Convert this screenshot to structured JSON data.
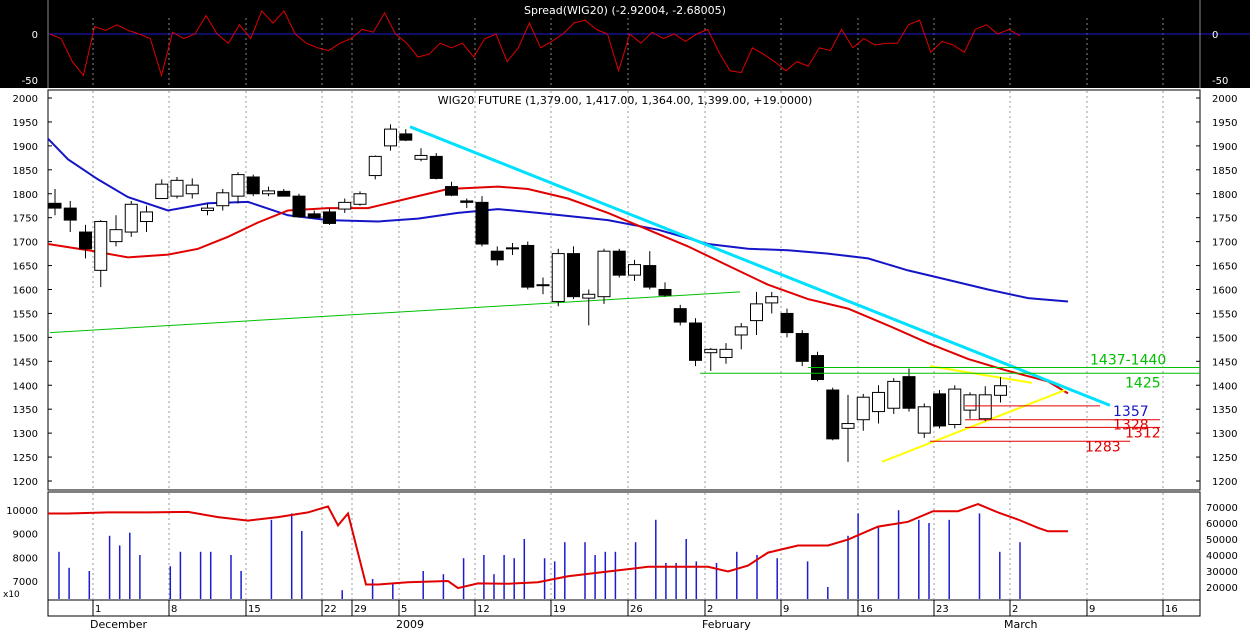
{
  "chart_data": [
    {
      "type": "line",
      "title": "Spread(WIG20) (-2.92004, -2.68005)",
      "ylim": [
        -55,
        55
      ],
      "y_ticks": [
        -50,
        0
      ],
      "y_tick_labels": [
        "-50",
        "0"
      ],
      "zero_line": true,
      "background": "#000000",
      "series": [
        {
          "color": "#e00000",
          "values": [
            0,
            -5,
            -30,
            -45,
            8,
            4,
            10,
            4,
            0,
            -5,
            -45,
            2,
            -5,
            0,
            20,
            0,
            -10,
            10,
            -5,
            25,
            12,
            25,
            0,
            -10,
            -15,
            -18,
            -10,
            -5,
            5,
            2,
            23,
            0,
            -10,
            -25,
            -22,
            -10,
            -15,
            -10,
            -25,
            -5,
            0,
            -30,
            -15,
            12,
            -15,
            -8,
            0,
            12,
            15,
            5,
            0,
            -40,
            0,
            -10,
            2,
            -5,
            0,
            -8,
            0,
            5,
            -20,
            -40,
            -42,
            -15,
            -22,
            -30,
            -40,
            -30,
            -35,
            -15,
            -18,
            5,
            -15,
            -5,
            -12,
            -10,
            -10,
            10,
            15,
            -20,
            -8,
            -12,
            -20,
            5,
            10,
            0,
            5,
            -2
          ]
        }
      ]
    },
    {
      "type": "candlestick",
      "title": "WIG20 FUTURE (1,379.00, 1,417.00, 1,364.00, 1,399.00, +19.0000)",
      "ylim": [
        1170,
        2010
      ],
      "y_ticks": [
        1200,
        1250,
        1300,
        1350,
        1400,
        1450,
        1500,
        1550,
        1600,
        1650,
        1700,
        1750,
        1800,
        1850,
        1900,
        1950,
        2000
      ],
      "candles": [
        {
          "o": 1780,
          "h": 1810,
          "l": 1755,
          "c": 1770
        },
        {
          "o": 1770,
          "h": 1785,
          "l": 1720,
          "c": 1745
        },
        {
          "o": 1720,
          "h": 1735,
          "l": 1665,
          "c": 1685
        },
        {
          "o": 1640,
          "h": 1745,
          "l": 1605,
          "c": 1742
        },
        {
          "o": 1700,
          "h": 1755,
          "l": 1690,
          "c": 1725
        },
        {
          "o": 1720,
          "h": 1785,
          "l": 1710,
          "c": 1778
        },
        {
          "o": 1742,
          "h": 1775,
          "l": 1720,
          "c": 1762
        },
        {
          "o": 1790,
          "h": 1830,
          "l": 1790,
          "c": 1820
        },
        {
          "o": 1795,
          "h": 1835,
          "l": 1790,
          "c": 1828
        },
        {
          "o": 1800,
          "h": 1832,
          "l": 1790,
          "c": 1818
        },
        {
          "o": 1765,
          "h": 1780,
          "l": 1755,
          "c": 1770
        },
        {
          "o": 1775,
          "h": 1810,
          "l": 1765,
          "c": 1802
        },
        {
          "o": 1795,
          "h": 1845,
          "l": 1780,
          "c": 1840
        },
        {
          "o": 1835,
          "h": 1840,
          "l": 1795,
          "c": 1800
        },
        {
          "o": 1800,
          "h": 1815,
          "l": 1795,
          "c": 1806
        },
        {
          "o": 1805,
          "h": 1810,
          "l": 1795,
          "c": 1795
        },
        {
          "o": 1795,
          "h": 1800,
          "l": 1750,
          "c": 1752
        },
        {
          "o": 1758,
          "h": 1765,
          "l": 1748,
          "c": 1750
        },
        {
          "o": 1762,
          "h": 1770,
          "l": 1735,
          "c": 1738
        },
        {
          "o": 1768,
          "h": 1790,
          "l": 1760,
          "c": 1782
        },
        {
          "o": 1778,
          "h": 1805,
          "l": 1775,
          "c": 1800
        },
        {
          "o": 1838,
          "h": 1880,
          "l": 1830,
          "c": 1878
        },
        {
          "o": 1900,
          "h": 1945,
          "l": 1890,
          "c": 1935
        },
        {
          "o": 1925,
          "h": 1935,
          "l": 1910,
          "c": 1912
        },
        {
          "o": 1872,
          "h": 1895,
          "l": 1868,
          "c": 1880
        },
        {
          "o": 1878,
          "h": 1885,
          "l": 1830,
          "c": 1832
        },
        {
          "o": 1815,
          "h": 1825,
          "l": 1795,
          "c": 1797
        },
        {
          "o": 1785,
          "h": 1790,
          "l": 1770,
          "c": 1782
        },
        {
          "o": 1782,
          "h": 1795,
          "l": 1690,
          "c": 1695
        },
        {
          "o": 1680,
          "h": 1690,
          "l": 1650,
          "c": 1662
        },
        {
          "o": 1687,
          "h": 1697,
          "l": 1672,
          "c": 1687
        },
        {
          "o": 1692,
          "h": 1700,
          "l": 1600,
          "c": 1605
        },
        {
          "o": 1610,
          "h": 1625,
          "l": 1590,
          "c": 1610
        },
        {
          "o": 1575,
          "h": 1685,
          "l": 1565,
          "c": 1675
        },
        {
          "o": 1675,
          "h": 1690,
          "l": 1580,
          "c": 1585
        },
        {
          "o": 1582,
          "h": 1600,
          "l": 1525,
          "c": 1590
        },
        {
          "o": 1585,
          "h": 1685,
          "l": 1570,
          "c": 1680
        },
        {
          "o": 1680,
          "h": 1685,
          "l": 1625,
          "c": 1630
        },
        {
          "o": 1630,
          "h": 1662,
          "l": 1618,
          "c": 1652
        },
        {
          "o": 1650,
          "h": 1680,
          "l": 1600,
          "c": 1605
        },
        {
          "o": 1600,
          "h": 1615,
          "l": 1585,
          "c": 1588
        },
        {
          "o": 1560,
          "h": 1568,
          "l": 1525,
          "c": 1532
        },
        {
          "o": 1530,
          "h": 1540,
          "l": 1440,
          "c": 1452
        },
        {
          "o": 1468,
          "h": 1478,
          "l": 1430,
          "c": 1475
        },
        {
          "o": 1458,
          "h": 1488,
          "l": 1445,
          "c": 1475
        },
        {
          "o": 1505,
          "h": 1530,
          "l": 1475,
          "c": 1522
        },
        {
          "o": 1535,
          "h": 1595,
          "l": 1505,
          "c": 1570
        },
        {
          "o": 1572,
          "h": 1595,
          "l": 1550,
          "c": 1585
        },
        {
          "o": 1550,
          "h": 1560,
          "l": 1500,
          "c": 1510
        },
        {
          "o": 1508,
          "h": 1515,
          "l": 1440,
          "c": 1450
        },
        {
          "o": 1462,
          "h": 1470,
          "l": 1408,
          "c": 1412
        },
        {
          "o": 1390,
          "h": 1395,
          "l": 1285,
          "c": 1288
        },
        {
          "o": 1310,
          "h": 1380,
          "l": 1240,
          "c": 1320
        },
        {
          "o": 1328,
          "h": 1382,
          "l": 1305,
          "c": 1375
        },
        {
          "o": 1345,
          "h": 1400,
          "l": 1320,
          "c": 1385
        },
        {
          "o": 1352,
          "h": 1415,
          "l": 1340,
          "c": 1408
        },
        {
          "o": 1418,
          "h": 1435,
          "l": 1345,
          "c": 1352
        },
        {
          "o": 1300,
          "h": 1362,
          "l": 1290,
          "c": 1355
        },
        {
          "o": 1382,
          "h": 1390,
          "l": 1310,
          "c": 1315
        },
        {
          "o": 1318,
          "h": 1400,
          "l": 1310,
          "c": 1392
        },
        {
          "o": 1348,
          "h": 1385,
          "l": 1330,
          "c": 1380
        },
        {
          "o": 1330,
          "h": 1398,
          "l": 1325,
          "c": 1380
        },
        {
          "o": 1379,
          "h": 1417,
          "l": 1364,
          "c": 1399
        }
      ],
      "ma_series": [
        {
          "name": "blue",
          "color": "#1515c8",
          "values": [
            [
              0,
              1915
            ],
            [
              20,
              1872
            ],
            [
              50,
              1830
            ],
            [
              80,
              1793
            ],
            [
              120,
              1765
            ],
            [
              160,
              1780
            ],
            [
              200,
              1783
            ],
            [
              240,
              1755
            ],
            [
              280,
              1745
            ],
            [
              330,
              1742
            ],
            [
              370,
              1748
            ],
            [
              410,
              1760
            ],
            [
              450,
              1768
            ],
            [
              490,
              1760
            ],
            [
              560,
              1745
            ],
            [
              610,
              1725
            ],
            [
              660,
              1695
            ],
            [
              700,
              1685
            ],
            [
              740,
              1682
            ],
            [
              780,
              1675
            ],
            [
              820,
              1665
            ],
            [
              860,
              1640
            ],
            [
              900,
              1620
            ],
            [
              940,
              1600
            ],
            [
              980,
              1582
            ],
            [
              1020,
              1575
            ]
          ]
        },
        {
          "name": "red",
          "color": "#e00000",
          "values": [
            [
              0,
              1695
            ],
            [
              40,
              1682
            ],
            [
              80,
              1667
            ],
            [
              120,
              1673
            ],
            [
              150,
              1685
            ],
            [
              180,
              1710
            ],
            [
              210,
              1740
            ],
            [
              240,
              1765
            ],
            [
              280,
              1770
            ],
            [
              320,
              1770
            ],
            [
              360,
              1790
            ],
            [
              400,
              1810
            ],
            [
              450,
              1815
            ],
            [
              480,
              1810
            ],
            [
              520,
              1790
            ],
            [
              560,
              1760
            ],
            [
              600,
              1725
            ],
            [
              640,
              1690
            ],
            [
              680,
              1650
            ],
            [
              720,
              1610
            ],
            [
              760,
              1580
            ],
            [
              800,
              1560
            ],
            [
              840,
              1525
            ],
            [
              880,
              1488
            ],
            [
              920,
              1455
            ],
            [
              960,
              1430
            ],
            [
              1000,
              1408
            ],
            [
              1020,
              1383
            ]
          ]
        }
      ],
      "trend_lines": [
        {
          "color": "#00e0ff",
          "width": 3,
          "from": [
            410,
            1940
          ],
          "to": [
            1110,
            1358
          ]
        },
        {
          "color": "#00c000",
          "width": 1,
          "from": [
            50,
            1510
          ],
          "to": [
            740,
            1595
          ]
        },
        {
          "color": "#ffff00",
          "width": 2,
          "from": [
            882,
            1240
          ],
          "to": [
            1065,
            1390
          ]
        },
        {
          "color": "#ffff00",
          "width": 2,
          "from": [
            930,
            1440
          ],
          "to": [
            1032,
            1405
          ]
        }
      ],
      "levels": [
        {
          "value": 1437,
          "label": "1437-1440",
          "color": "#00c000",
          "from": 808,
          "to": 1200,
          "label_x": 1090
        },
        {
          "value": 1425,
          "label": "1425",
          "color": "#00c000",
          "from": 700,
          "to": 1200,
          "label_x": 1125
        },
        {
          "value": 1357,
          "label": "1357",
          "color": "#e00000",
          "from": 965,
          "to": 1100,
          "label_x": 1113,
          "label_color": "#1515c8"
        },
        {
          "value": 1328,
          "label": "1328",
          "color": "#e00000",
          "from": 965,
          "to": 1160,
          "label_x": 1113
        },
        {
          "value": 1312,
          "label": "1312",
          "color": "#e00000",
          "from": 965,
          "to": 1160,
          "label_x": 1125
        },
        {
          "value": 1283,
          "label": "1283",
          "color": "#e00000",
          "from": 930,
          "to": 1130,
          "label_x": 1085
        }
      ]
    },
    {
      "type": "bar",
      "ylim_left": [
        6000,
        11000
      ],
      "ylim_right": [
        10000,
        75000
      ],
      "left_ticks": [
        7000,
        8000,
        9000,
        10000
      ],
      "left_tick_labels": [
        "7000",
        "8000",
        "9000",
        "10000"
      ],
      "right_ticks": [
        20000,
        30000,
        40000,
        50000,
        60000,
        70000
      ],
      "right_tick_labels": [
        "20000",
        "30000",
        "40000",
        "50000",
        "60000",
        "70000"
      ],
      "multiplier_label": "x10",
      "volume": [
        42000,
        32000,
        0,
        30000,
        0,
        52000,
        46000,
        54000,
        40000,
        0,
        0,
        33000,
        42000,
        0,
        42000,
        42000,
        0,
        40000,
        30000,
        0,
        0,
        62000,
        0,
        66000,
        55000,
        0,
        0,
        0,
        18000,
        0,
        0,
        25000,
        0,
        22000,
        0,
        0,
        30000,
        0,
        28000,
        0,
        38000,
        0,
        40000,
        28000,
        40000,
        38000,
        50000,
        0,
        38000,
        36000,
        48000,
        0,
        48000,
        40000,
        42000,
        42000,
        0,
        48000,
        0,
        62000,
        35000,
        35000,
        50000,
        36000,
        0,
        35000,
        0,
        42000,
        0,
        40000,
        0,
        38000,
        0,
        0,
        36000,
        0,
        20000,
        0,
        52000,
        66000,
        0,
        58000,
        0,
        68000,
        0,
        62000,
        60000,
        0,
        62000,
        0,
        0,
        66000,
        0,
        42000,
        0,
        48000
      ],
      "series": [
        {
          "name": "red",
          "color": "#e00000",
          "values": [
            [
              0,
              9850
            ],
            [
              20,
              9850
            ],
            [
              60,
              9900
            ],
            [
              100,
              9900
            ],
            [
              140,
              9920
            ],
            [
              170,
              9700
            ],
            [
              200,
              9550
            ],
            [
              230,
              9700
            ],
            [
              260,
              9900
            ],
            [
              280,
              10150
            ],
            [
              290,
              9350
            ],
            [
              300,
              9850
            ],
            [
              318,
              6850
            ],
            [
              330,
              6850
            ],
            [
              340,
              6880
            ],
            [
              360,
              6950
            ],
            [
              400,
              7000
            ],
            [
              410,
              6700
            ],
            [
              430,
              6900
            ],
            [
              460,
              6880
            ],
            [
              490,
              6950
            ],
            [
              520,
              7200
            ],
            [
              560,
              7400
            ],
            [
              600,
              7600
            ],
            [
              630,
              7600
            ],
            [
              660,
              7600
            ],
            [
              680,
              7400
            ],
            [
              700,
              7650
            ],
            [
              720,
              8200
            ],
            [
              750,
              8500
            ],
            [
              780,
              8500
            ],
            [
              800,
              8750
            ],
            [
              830,
              9300
            ],
            [
              860,
              9500
            ],
            [
              885,
              9950
            ],
            [
              910,
              9950
            ],
            [
              930,
              10250
            ],
            [
              950,
              9900
            ],
            [
              970,
              9600
            ],
            [
              990,
              9250
            ],
            [
              1000,
              9100
            ],
            [
              1020,
              9100
            ]
          ]
        }
      ]
    }
  ],
  "x_axis": {
    "day_ticks": [
      "1",
      "8",
      "15",
      "22",
      "29",
      "5",
      "12",
      "19",
      "26",
      "2",
      "9",
      "16",
      "23",
      "2",
      "9",
      "16"
    ],
    "month_labels": [
      "December",
      "2009",
      "February",
      "March"
    ]
  }
}
